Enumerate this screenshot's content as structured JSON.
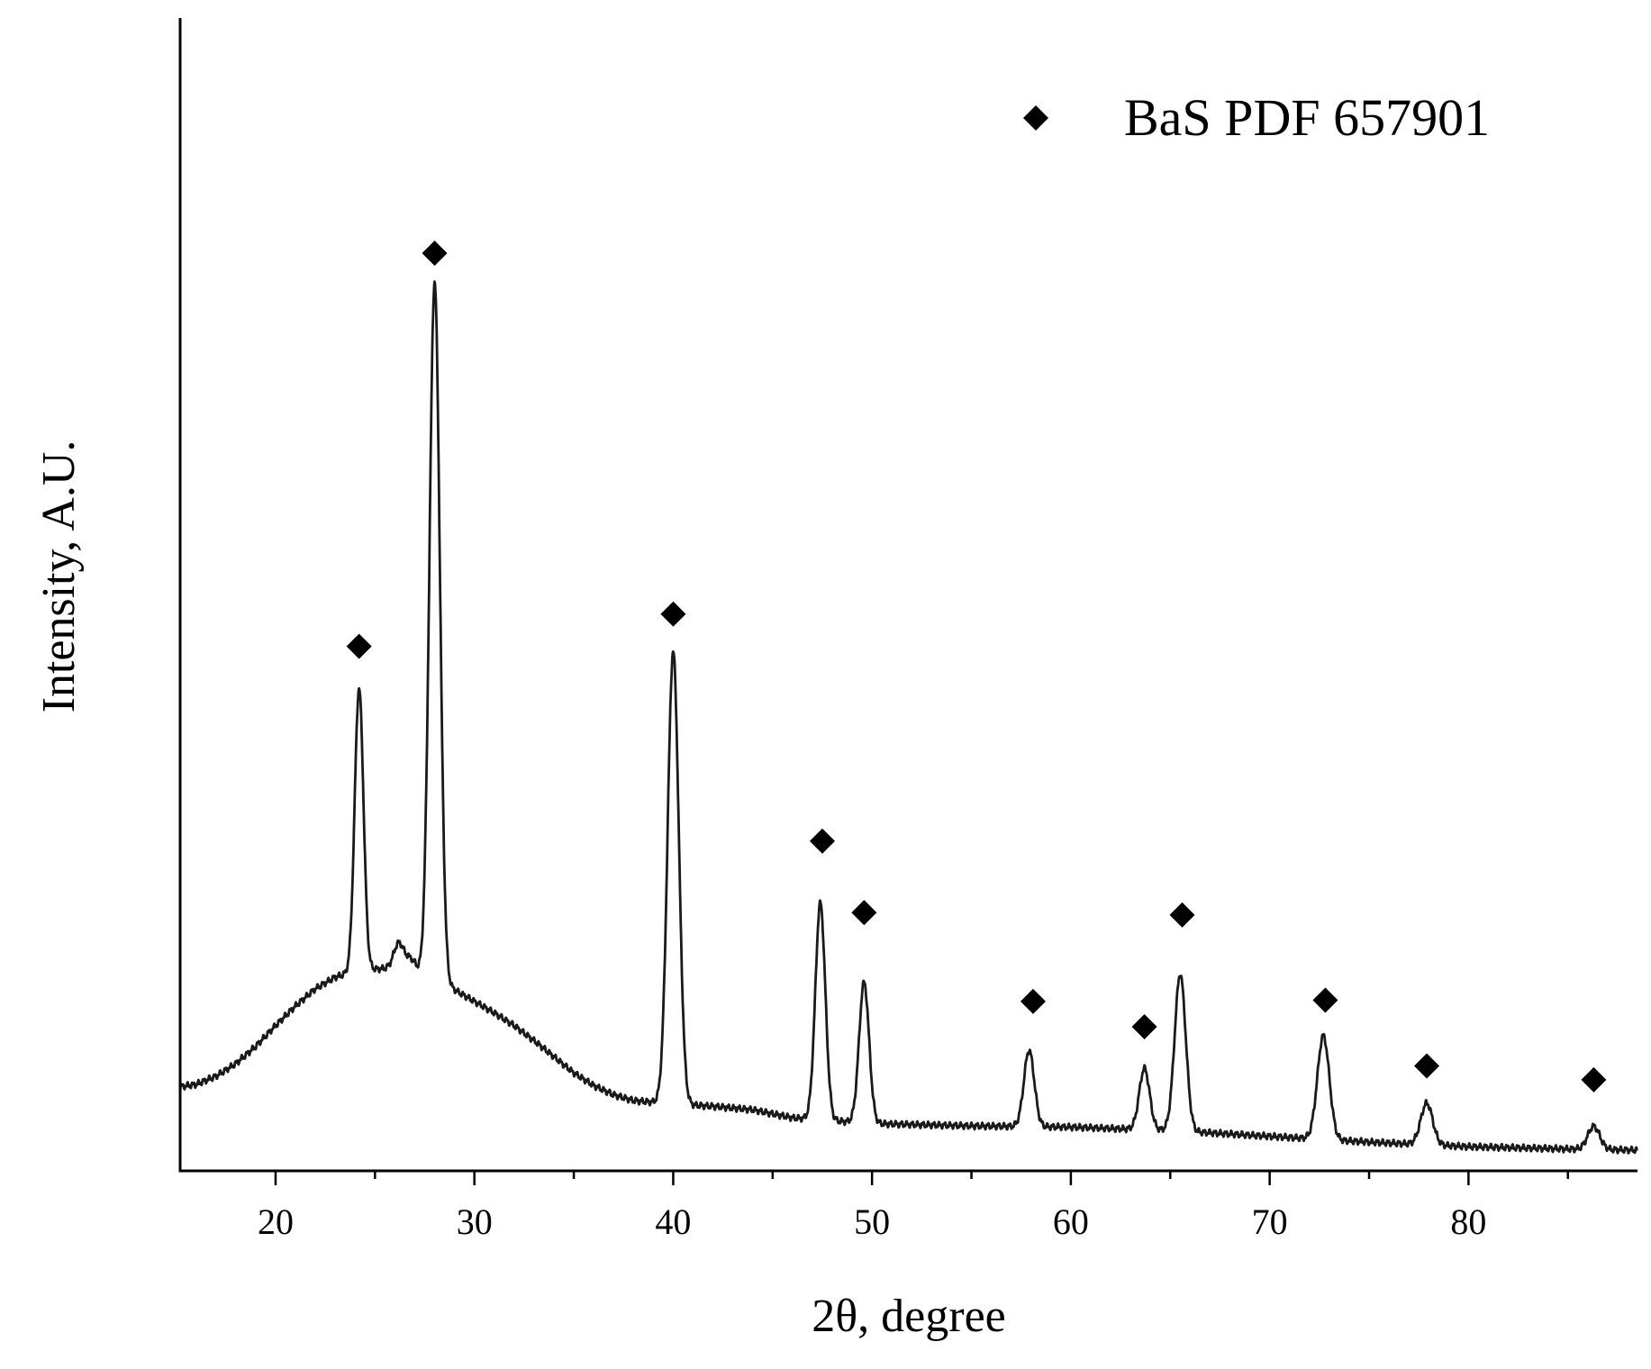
{
  "chart_data": {
    "type": "line",
    "title": "",
    "xlabel": "2θ, degree",
    "ylabel": "Intensity, A.U.",
    "xlim": [
      15.2,
      88.5
    ],
    "ylim": [
      0,
      100
    ],
    "x_ticks": [
      20,
      30,
      40,
      50,
      60,
      70,
      80
    ],
    "x_tick_labels": [
      "20",
      "30",
      "40",
      "50",
      "60",
      "70",
      "80"
    ],
    "x_minor_step": 5,
    "y_ticks_shown": false,
    "grid": false,
    "legend_position": "top-right",
    "line_color": "#1a1a1a",
    "marker_color": "#000000",
    "legend": [
      {
        "marker": "diamond",
        "label": "BaS PDF 657901"
      }
    ],
    "series": [
      {
        "baseline": [
          [
            15.2,
            7.3
          ],
          [
            16,
            7.5
          ],
          [
            17,
            8.2
          ],
          [
            18,
            9.3
          ],
          [
            19,
            10.8
          ],
          [
            20,
            12.6
          ],
          [
            21,
            14.3
          ],
          [
            22,
            15.8
          ],
          [
            23,
            16.8
          ],
          [
            24,
            17.3
          ],
          [
            25,
            17.5
          ],
          [
            26,
            17.6
          ],
          [
            27,
            17.3
          ],
          [
            28,
            16.6
          ],
          [
            29,
            15.7
          ],
          [
            30,
            14.7
          ],
          [
            31,
            13.7
          ],
          [
            32,
            12.6
          ],
          [
            33,
            11.3
          ],
          [
            34,
            9.9
          ],
          [
            35,
            8.5
          ],
          [
            36,
            7.4
          ],
          [
            37,
            6.6
          ],
          [
            38,
            6.1
          ],
          [
            40,
            5.8
          ],
          [
            42,
            5.6
          ],
          [
            44,
            5.3
          ],
          [
            46,
            4.6
          ],
          [
            50,
            4.1
          ],
          [
            55,
            3.9
          ],
          [
            60,
            3.8
          ],
          [
            65,
            3.5
          ],
          [
            70,
            3.0
          ],
          [
            75,
            2.5
          ],
          [
            80,
            2.1
          ],
          [
            85,
            1.9
          ],
          [
            88.5,
            1.8
          ]
        ],
        "peaks": [
          {
            "x": 24.2,
            "height": 24.5,
            "width": 0.22
          },
          {
            "x": 26.2,
            "height": 2.2,
            "width": 0.25
          },
          {
            "x": 26.8,
            "height": 1.0,
            "width": 0.25
          },
          {
            "x": 28.0,
            "height": 60.5,
            "width": 0.26
          },
          {
            "x": 40.0,
            "height": 39.2,
            "width": 0.28
          },
          {
            "x": 47.4,
            "height": 18.8,
            "width": 0.25
          },
          {
            "x": 49.6,
            "height": 12.2,
            "width": 0.25
          },
          {
            "x": 57.9,
            "height": 6.6,
            "width": 0.26
          },
          {
            "x": 63.7,
            "height": 5.3,
            "width": 0.26
          },
          {
            "x": 65.5,
            "height": 13.6,
            "width": 0.28
          },
          {
            "x": 72.7,
            "height": 9.0,
            "width": 0.3
          },
          {
            "x": 77.9,
            "height": 3.6,
            "width": 0.3
          },
          {
            "x": 86.3,
            "height": 2.0,
            "width": 0.3
          }
        ]
      }
    ],
    "markers": [
      {
        "x": 24.2,
        "y": 45.5
      },
      {
        "x": 28.0,
        "y": 79.6
      },
      {
        "x": 40.0,
        "y": 48.3
      },
      {
        "x": 47.5,
        "y": 28.6
      },
      {
        "x": 49.6,
        "y": 22.4
      },
      {
        "x": 58.1,
        "y": 14.7
      },
      {
        "x": 63.7,
        "y": 12.5
      },
      {
        "x": 65.6,
        "y": 22.2
      },
      {
        "x": 72.8,
        "y": 14.8
      },
      {
        "x": 77.9,
        "y": 9.1
      },
      {
        "x": 86.3,
        "y": 7.9
      }
    ]
  }
}
